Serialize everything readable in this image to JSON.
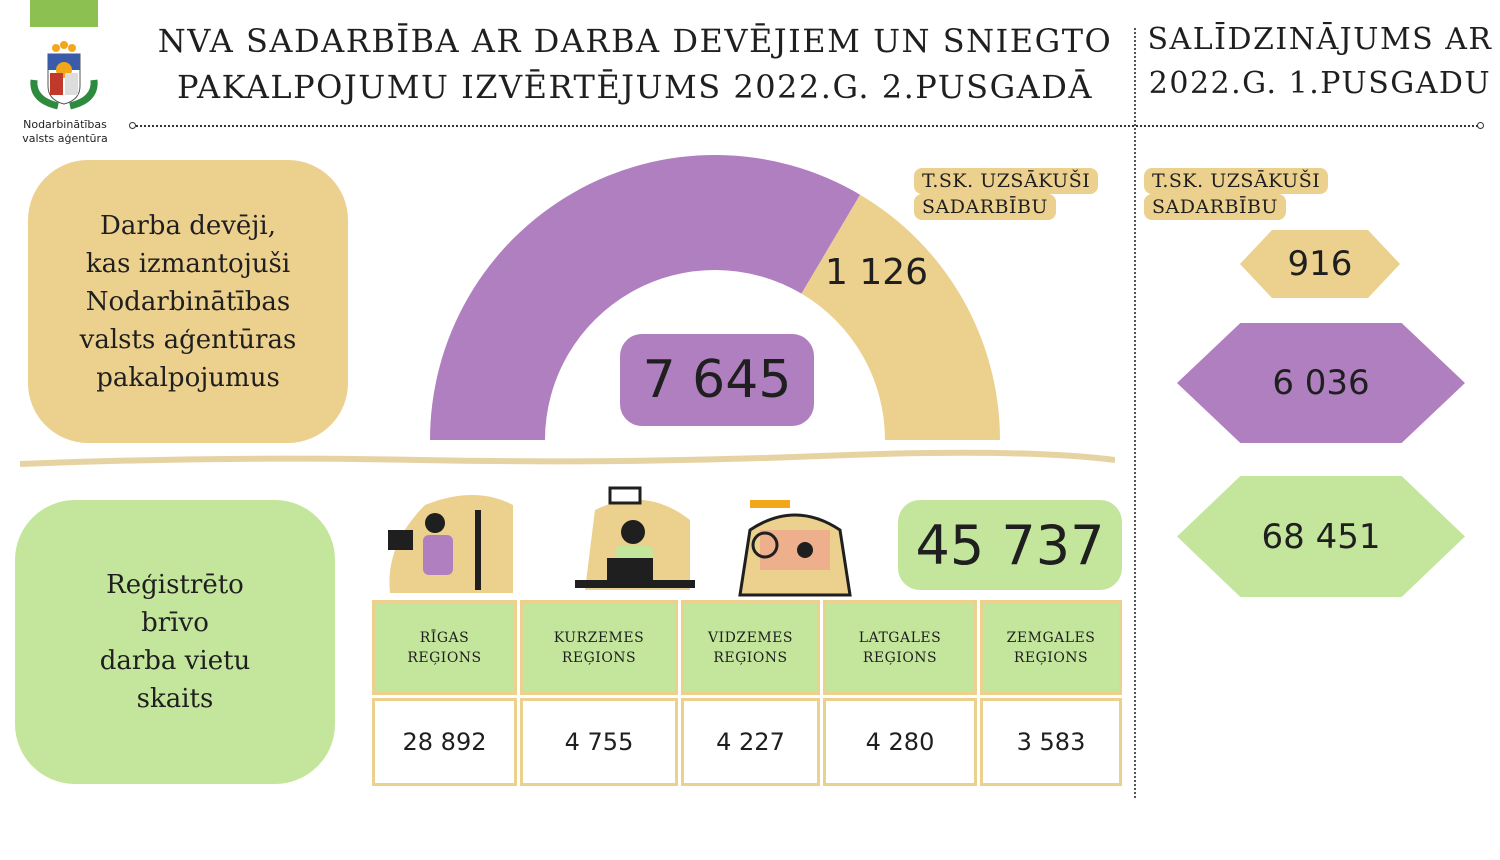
{
  "header": {
    "title": "NVA SADARBĪBA AR DARBA DEVĒJIEM UN SNIEGTO\nPAKALPOJUMU IZVĒRTĒJUMS 2022.G. 2.PUSGADĀ",
    "comparison_title": "SALĪDZINĀJUMS AR\n2022.G. 1.PUSGADU",
    "logo_text": "Nodarbinātības\nvalsts aģentūra"
  },
  "employers": {
    "label": "Darba devēji,\nkas izmantojuši\nNodarbinātības\nvalsts aģentūras\npakalpojumus",
    "total": "7 645",
    "started": "1 126",
    "started_label_line1": "T.SK. UZSĀKUŠI",
    "started_label_line2": "SADARBĪBU"
  },
  "vacancies": {
    "label": "Reģistrēto\nbrīvo\ndarba vietu\nskaits",
    "total": "45 737",
    "regions": [
      {
        "name": "RĪGAS\nREĢIONS",
        "value": "28 892"
      },
      {
        "name": "KURZEMES\nREĢIONS",
        "value": "4 755"
      },
      {
        "name": "VIDZEMES\nREĢIONS",
        "value": "4 227"
      },
      {
        "name": "LATGALES\nREĢIONS",
        "value": "4 280"
      },
      {
        "name": "ZEMGALES\nREĢIONS",
        "value": "3 583"
      }
    ]
  },
  "comparison": {
    "label_line1": "T.SK. UZSĀKUŠI",
    "label_line2": "SADARBĪBU",
    "started": "916",
    "employers": "6 036",
    "vacancies": "68 451"
  },
  "colors": {
    "purple": "#b07fbf",
    "tan": "#ecd08e",
    "green": "#c3e69c",
    "brand_green": "#8cc152"
  }
}
